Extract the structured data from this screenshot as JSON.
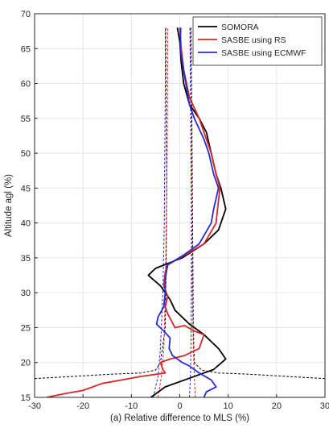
{
  "chart_data": {
    "type": "line",
    "title": "",
    "xlabel": "(a) Relative difference to MLS (%)",
    "ylabel": "Altitude agl (%)",
    "xlim": [
      -30,
      30
    ],
    "ylim": [
      15,
      70
    ],
    "xticks": [
      "-30",
      "-20",
      "-10",
      "0",
      "10",
      "20",
      "30"
    ],
    "yticks": [
      "15",
      "20",
      "25",
      "30",
      "35",
      "40",
      "45",
      "50",
      "55",
      "60",
      "65",
      "70"
    ],
    "grid": true,
    "legend": "top-right",
    "series": [
      {
        "name": "SOMORA",
        "color": "#000000",
        "style": "solid",
        "points": [
          [
            -0.5,
            68
          ],
          [
            0,
            66
          ],
          [
            0.3,
            63
          ],
          [
            0.8,
            60
          ],
          [
            2,
            57
          ],
          [
            4,
            55
          ],
          [
            5.5,
            53
          ],
          [
            6.5,
            50
          ],
          [
            7.5,
            47
          ],
          [
            8.5,
            45
          ],
          [
            9.5,
            42
          ],
          [
            8,
            39
          ],
          [
            5,
            37
          ],
          [
            0.5,
            35
          ],
          [
            -5,
            33.5
          ],
          [
            -6.5,
            32.5
          ],
          [
            -4,
            31
          ],
          [
            -2,
            29
          ],
          [
            -1,
            27.5
          ],
          [
            2,
            25.5
          ],
          [
            5,
            24
          ],
          [
            8,
            22
          ],
          [
            9.5,
            20.5
          ],
          [
            7,
            19
          ],
          [
            3,
            18
          ],
          [
            -3,
            16.5
          ],
          [
            -6,
            15
          ]
        ]
      },
      {
        "name": "SASBE using RS",
        "color": "#d62728",
        "style": "solid",
        "points": [
          [
            0,
            68
          ],
          [
            0.3,
            65
          ],
          [
            0.8,
            62
          ],
          [
            2,
            58
          ],
          [
            4,
            55
          ],
          [
            5.5,
            52
          ],
          [
            6.5,
            50
          ],
          [
            7.5,
            47
          ],
          [
            8.3,
            45
          ],
          [
            7.8,
            42
          ],
          [
            7.5,
            40
          ],
          [
            5,
            37
          ],
          [
            0,
            35
          ],
          [
            -2.5,
            34
          ],
          [
            -3,
            33
          ],
          [
            -3.3,
            31
          ],
          [
            -2.5,
            29.5
          ],
          [
            -3,
            28
          ],
          [
            -2.5,
            27
          ],
          [
            -1,
            25
          ],
          [
            1,
            25.3
          ],
          [
            3,
            24.5
          ],
          [
            5,
            24
          ],
          [
            4.5,
            23
          ],
          [
            4,
            22
          ],
          [
            2.5,
            21.5
          ],
          [
            1,
            21
          ],
          [
            -2,
            20.5
          ],
          [
            -4,
            20
          ],
          [
            -3.5,
            19
          ],
          [
            -3,
            18.5
          ],
          [
            -5,
            18.3
          ],
          [
            -8,
            18
          ],
          [
            -12,
            17.5
          ],
          [
            -16,
            17
          ],
          [
            -20,
            16
          ],
          [
            -24,
            15.5
          ],
          [
            -27.5,
            15
          ]
        ]
      },
      {
        "name": "SASBE using ECMWF",
        "color": "#2a2ad4",
        "style": "solid",
        "points": [
          [
            0.2,
            68
          ],
          [
            0.1,
            65
          ],
          [
            1,
            61
          ],
          [
            2,
            57
          ],
          [
            3,
            55
          ],
          [
            5,
            52
          ],
          [
            6,
            50
          ],
          [
            7,
            47
          ],
          [
            8,
            45
          ],
          [
            7,
            42
          ],
          [
            6.5,
            40
          ],
          [
            4,
            37
          ],
          [
            1,
            35.5
          ],
          [
            -2.5,
            34
          ],
          [
            -3,
            32
          ],
          [
            -3,
            30
          ],
          [
            -3.3,
            28
          ],
          [
            -4.5,
            26.5
          ],
          [
            -4.8,
            25.5
          ],
          [
            -3.3,
            24.5
          ],
          [
            -2,
            23.5
          ],
          [
            -2.2,
            22
          ],
          [
            -1.5,
            21
          ],
          [
            0.5,
            20
          ],
          [
            2,
            19.5
          ],
          [
            4,
            18.5
          ],
          [
            6.5,
            17.5
          ],
          [
            7.5,
            16.5
          ],
          [
            5.5,
            15.8
          ],
          [
            5,
            15
          ]
        ]
      },
      {
        "name": "",
        "color": "#000000",
        "style": "dashed",
        "points": [
          [
            -30,
            17.7
          ],
          [
            -22,
            18
          ],
          [
            -15,
            18.3
          ],
          [
            -8,
            18.5
          ],
          [
            -5,
            18.9
          ],
          [
            -4,
            20
          ],
          [
            -3,
            25
          ],
          [
            -2.8,
            35
          ],
          [
            -2.7,
            45
          ],
          [
            -2.8,
            55
          ],
          [
            -2.9,
            68
          ]
        ]
      },
      {
        "name": "",
        "color": "#000000",
        "style": "dashed",
        "points": [
          [
            30,
            17.7
          ],
          [
            22,
            18
          ],
          [
            15,
            18.3
          ],
          [
            8,
            18.5
          ],
          [
            4.5,
            18.9
          ],
          [
            3,
            20
          ],
          [
            2.8,
            25
          ],
          [
            2.7,
            35
          ],
          [
            2.6,
            45
          ],
          [
            2.5,
            55
          ],
          [
            2.3,
            68
          ]
        ]
      },
      {
        "name": "",
        "color": "#d62728",
        "style": "dashed",
        "points": [
          [
            -4.5,
            15
          ],
          [
            -3.8,
            18
          ],
          [
            -3.3,
            22
          ],
          [
            -3,
            30
          ],
          [
            -2.8,
            40
          ],
          [
            -2.6,
            50
          ],
          [
            -2.5,
            60
          ],
          [
            -2.5,
            68
          ]
        ]
      },
      {
        "name": "",
        "color": "#d62728",
        "style": "dashed",
        "points": [
          [
            3.2,
            15
          ],
          [
            3,
            18
          ],
          [
            2.8,
            22
          ],
          [
            2.6,
            30
          ],
          [
            2.5,
            40
          ],
          [
            2.4,
            50
          ],
          [
            2.3,
            60
          ],
          [
            2.2,
            68
          ]
        ]
      },
      {
        "name": "",
        "color": "#2a2ad4",
        "style": "dashed",
        "points": [
          [
            -5.5,
            15
          ],
          [
            -4.5,
            18
          ],
          [
            -4,
            22
          ],
          [
            -3.5,
            30
          ],
          [
            -3.2,
            40
          ],
          [
            -3.1,
            50
          ],
          [
            -3,
            60
          ],
          [
            -3,
            68
          ]
        ]
      },
      {
        "name": "",
        "color": "#2a2ad4",
        "style": "dashed",
        "points": [
          [
            2,
            15
          ],
          [
            2.2,
            18
          ],
          [
            2.3,
            22
          ],
          [
            2.4,
            30
          ],
          [
            2.4,
            40
          ],
          [
            2.3,
            50
          ],
          [
            2.2,
            60
          ],
          [
            2.1,
            68
          ]
        ]
      }
    ]
  }
}
